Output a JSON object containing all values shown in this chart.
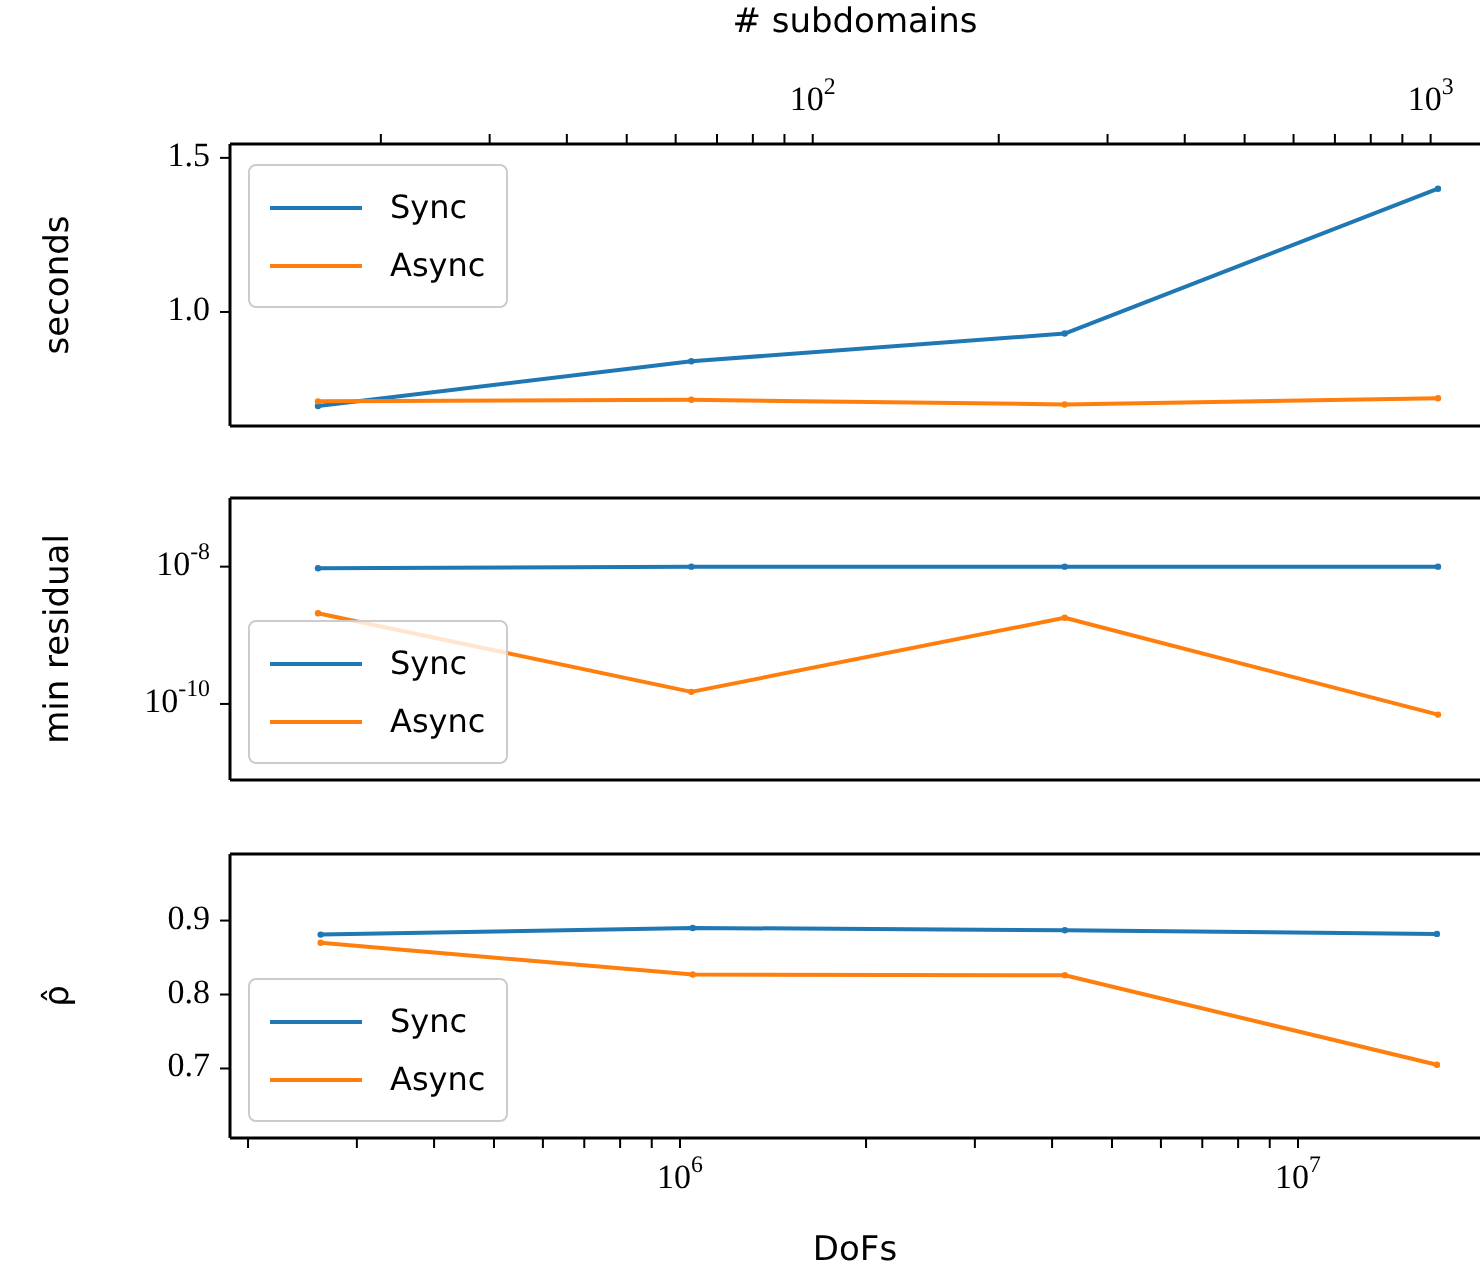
{
  "chart_data": [
    {
      "type": "line",
      "ylabel": "seconds",
      "x2label": "# subdomains",
      "log": "x2",
      "legend": "top left",
      "marker": "circle",
      "tick_labels": [
        "y",
        "x2"
      ],
      "categories": [
        null,
        null,
        null,
        null
      ],
      "series": [
        {
          "name": "Sync",
          "color": "#1f77b4",
          "values": [
            0.695,
            0.84,
            0.93,
            1.4
          ]
        },
        {
          "name": "Async",
          "color": "#ff7f0e",
          "values": [
            0.71,
            0.715,
            0.7,
            0.72
          ]
        }
      ],
      "x2lim": [
        11.4,
        1202
      ],
      "x2ticks": [
        {
          "value": 20,
          "label": null
        },
        {
          "value": 30,
          "label": null
        },
        {
          "value": 40,
          "label": null
        },
        {
          "value": 50,
          "label": null
        },
        {
          "value": 60,
          "label": null
        },
        {
          "value": 70,
          "label": null
        },
        {
          "value": 80,
          "label": null
        },
        {
          "value": 90,
          "label": null
        },
        {
          "value": 100,
          "label": "10$^{2}$"
        },
        {
          "value": 200,
          "label": null
        },
        {
          "value": 300,
          "label": null
        },
        {
          "value": 400,
          "label": null
        },
        {
          "value": 500,
          "label": null
        },
        {
          "value": 600,
          "label": null
        },
        {
          "value": 700,
          "label": null
        },
        {
          "value": 800,
          "label": null
        },
        {
          "value": 900,
          "label": null
        },
        {
          "value": 1000,
          "label": "10$^{3}$"
        }
      ],
      "ylim": [
        0.63,
        1.545
      ],
      "yticks": [
        {
          "value": 1.0,
          "label": "1.0"
        },
        1.5
      ]
    },
    {
      "type": "line",
      "ylabel": "min residual",
      "log": "y",
      "legend": "bottom left",
      "marker": "circle",
      "tick_labels": "y",
      "categories": [
        null,
        null,
        null,
        null
      ],
      "series": [
        {
          "name": "Sync",
          "color": "#1f77b4",
          "values": [
            9.5e-09,
            1e-08,
            1e-08,
            1e-08
          ]
        },
        {
          "name": "Async",
          "color": "#ff7f0e",
          "values": [
            2.1e-09,
            1.5e-10,
            1.8e-09,
            7e-11
          ]
        }
      ],
      "ylim": [
        7.8e-12,
        1e-07
      ],
      "yticks": [
        {
          "value": 1e-10,
          "label": "10$^{-10}$"
        },
        {
          "value": 1e-08,
          "label": "10$^{-8}$"
        }
      ]
    },
    {
      "type": "line",
      "ylabel": "ρ̂",
      "xlabel": "DoFs",
      "log": "x",
      "legend": "bottom left",
      "marker": "circle",
      "x": [
        262144,
        1048576,
        4194304,
        16777216
      ],
      "series": [
        {
          "name": "Sync",
          "color": "#1f77b4",
          "values": [
            0.881,
            0.89,
            0.887,
            0.882
          ]
        },
        {
          "name": "Async",
          "color": "#ff7f0e",
          "values": [
            0.87,
            0.827,
            0.826,
            0.705
          ]
        }
      ],
      "xlim": [
        187000,
        19700000
      ],
      "xticks": [
        {
          "value": 200000,
          "label": null
        },
        {
          "value": 300000,
          "label": null
        },
        {
          "value": 400000,
          "label": null
        },
        {
          "value": 500000,
          "label": null
        },
        {
          "value": 600000,
          "label": null
        },
        {
          "value": 700000,
          "label": null
        },
        {
          "value": 800000,
          "label": null
        },
        {
          "value": 900000,
          "label": null
        },
        {
          "value": 1000000,
          "label": "10$^{6}$"
        },
        {
          "value": 2000000,
          "label": null
        },
        {
          "value": 3000000,
          "label": null
        },
        {
          "value": 4000000,
          "label": null
        },
        {
          "value": 5000000,
          "label": null
        },
        {
          "value": 6000000,
          "label": null
        },
        {
          "value": 7000000,
          "label": null
        },
        {
          "value": 8000000,
          "label": null
        },
        {
          "value": 9000000,
          "label": null
        },
        {
          "value": 10000000,
          "label": "10$^{7}$"
        }
      ],
      "ylim": [
        0.606,
        0.99
      ],
      "yticks": [
        0.7,
        0.8,
        0.9
      ]
    }
  ]
}
